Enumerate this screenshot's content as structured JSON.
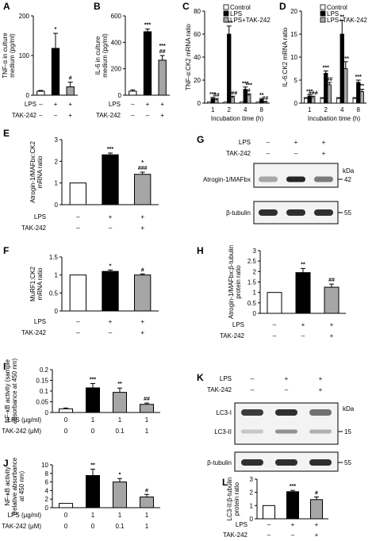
{
  "colors": {
    "control": "#ffffff",
    "lps": "#000000",
    "lps_tak": "#a6a6a6",
    "blot_bg": "#f3f3f3",
    "band": "#1a1a1a"
  },
  "legend": [
    "Control",
    "LPS",
    "LPS+TAK-242"
  ],
  "chart_data": [
    {
      "id": "A",
      "type": "bar",
      "ylabel": "TNF-α in culture medium (pg/ml)",
      "ylim": [
        0,
        200
      ],
      "yticks": [
        "0",
        "100",
        "200"
      ],
      "values": [
        10,
        118,
        21
      ],
      "errors": [
        2,
        38,
        12
      ],
      "sig": [
        "",
        "*",
        "#"
      ],
      "conditions": [
        {
          "label": "LPS",
          "values": [
            "–",
            "+",
            "+"
          ]
        },
        {
          "label": "TAK-242",
          "values": [
            "–",
            "–",
            "+"
          ]
        }
      ]
    },
    {
      "id": "B",
      "type": "bar",
      "ylabel": "IL-6 in culture medium (pg/ml)",
      "ylim": [
        0,
        600
      ],
      "yticks": [
        "0",
        "200",
        "400",
        "600"
      ],
      "values": [
        30,
        480,
        265
      ],
      "errors": [
        10,
        20,
        35
      ],
      "sig": [
        "",
        "***",
        "***\n##"
      ],
      "conditions": [
        {
          "label": "LPS",
          "values": [
            "–",
            "+",
            "+"
          ]
        },
        {
          "label": "TAK-242",
          "values": [
            "–",
            "–",
            "+"
          ]
        }
      ]
    },
    {
      "id": "C",
      "type": "bar",
      "ylabel": "TNF-α:CK2 mRNA ratio",
      "xlabel": "Incubation time (h)",
      "ylim": [
        0,
        80
      ],
      "yticks": [
        "0",
        "20",
        "40",
        "60",
        "80"
      ],
      "categories": [
        "1",
        "2",
        "4",
        "8"
      ],
      "series": [
        {
          "name": "Control",
          "values": [
            1,
            1,
            1,
            1
          ],
          "errors": [
            0.3,
            0.3,
            0.3,
            0.3
          ]
        },
        {
          "name": "LPS",
          "values": [
            4,
            60,
            12,
            3
          ],
          "errors": [
            1,
            7,
            2,
            1
          ]
        },
        {
          "name": "LPS+TAK-242",
          "values": [
            3,
            5,
            7,
            1
          ],
          "errors": [
            1,
            1,
            1,
            0.5
          ]
        }
      ],
      "sig": [
        [
          "",
          "***",
          "##"
        ],
        [
          "",
          "***",
          "###"
        ],
        [
          "",
          "***",
          "***\n#"
        ],
        [
          "",
          "**",
          "##"
        ]
      ]
    },
    {
      "id": "D",
      "type": "bar",
      "ylabel": "IL-6:CK2 mRNA ratio",
      "xlabel": "Incubation time (h)",
      "ylim": [
        0,
        20
      ],
      "yticks": [
        "0",
        "5",
        "10",
        "15",
        "20"
      ],
      "categories": [
        "1",
        "2",
        "4",
        "8"
      ],
      "series": [
        {
          "name": "Control",
          "values": [
            1,
            1,
            1,
            1
          ],
          "errors": [
            0.2,
            0.2,
            0.2,
            0.2
          ]
        },
        {
          "name": "LPS",
          "values": [
            1.5,
            6.5,
            15,
            4.5
          ],
          "errors": [
            0.3,
            0.5,
            3,
            0.5
          ]
        },
        {
          "name": "LPS+TAK-242",
          "values": [
            1.2,
            4,
            7.5,
            2.5
          ],
          "errors": [
            0.3,
            0.5,
            1.5,
            0.5
          ]
        }
      ],
      "sig": [
        [
          "",
          "***",
          "###"
        ],
        [
          "",
          "***",
          "##"
        ],
        [
          "",
          "**",
          "***"
        ],
        [
          "",
          "***",
          "**"
        ]
      ]
    },
    {
      "id": "E",
      "type": "bar",
      "ylabel": "Atrogin-1/MAFbx:CK2 mRNA ratio",
      "ylim": [
        0,
        3
      ],
      "yticks": [
        "0",
        "1",
        "2",
        "3"
      ],
      "values": [
        1,
        2.3,
        1.4
      ],
      "errors": [
        0,
        0.08,
        0.1
      ],
      "sig": [
        "",
        "***",
        "*\n###"
      ],
      "conditions": [
        {
          "label": "LPS",
          "values": [
            "–",
            "+",
            "+"
          ]
        },
        {
          "label": "TAK-242",
          "values": [
            "–",
            "–",
            "+"
          ]
        }
      ]
    },
    {
      "id": "F",
      "type": "bar",
      "ylabel": "MuRF1:CK2 mRNA ratio",
      "ylim": [
        0,
        1.5
      ],
      "yticks": [
        "0",
        "0.5",
        "1",
        "1.5"
      ],
      "values": [
        1,
        1.1,
        1.0
      ],
      "errors": [
        0,
        0.04,
        0.03
      ],
      "sig": [
        "",
        "*",
        "#"
      ],
      "conditions": [
        {
          "label": "LPS",
          "values": [
            "–",
            "+",
            "+"
          ]
        },
        {
          "label": "TAK-242",
          "values": [
            "–",
            "–",
            "+"
          ]
        }
      ]
    },
    {
      "id": "H",
      "type": "bar",
      "ylabel": "Atrogin-1/MAFbx:β-tubulin protein ratio",
      "ylim": [
        0,
        3
      ],
      "yticks": [
        "0",
        "0.5",
        "1",
        "1.5",
        "2",
        "2.5",
        "3"
      ],
      "values": [
        1,
        1.95,
        1.25
      ],
      "errors": [
        0,
        0.2,
        0.15
      ],
      "sig": [
        "",
        "**",
        "##"
      ],
      "conditions": [
        {
          "label": "LPS",
          "values": [
            "–",
            "+",
            "+"
          ]
        },
        {
          "label": "TAK-242",
          "values": [
            "–",
            "–",
            "+"
          ]
        }
      ]
    },
    {
      "id": "I",
      "type": "bar",
      "ylabel": "NF-κB activity (sample absorbance at 450 nm)",
      "ylim": [
        0,
        0.2
      ],
      "yticks": [
        "0",
        "0.05",
        "0.1",
        "0.15",
        "0.2"
      ],
      "values": [
        0.017,
        0.115,
        0.094,
        0.038
      ],
      "errors": [
        0.004,
        0.02,
        0.02,
        0.006
      ],
      "sig": [
        "",
        "***",
        "**",
        "##"
      ],
      "conditions": [
        {
          "label": "LPS (μg/ml)",
          "values": [
            "0",
            "1",
            "1",
            "1"
          ]
        },
        {
          "label": "TAK-242 (μM)",
          "values": [
            "0",
            "0",
            "0.1",
            "1"
          ]
        }
      ]
    },
    {
      "id": "J",
      "type": "bar",
      "ylabel": "NF-κB activity (relative absorbance at 450 nm)",
      "ylim": [
        0,
        10
      ],
      "yticks": [
        "0",
        "2",
        "4",
        "6",
        "8",
        "10"
      ],
      "values": [
        1,
        7.5,
        6.0,
        2.5
      ],
      "errors": [
        0,
        1.5,
        0.8,
        0.6
      ],
      "sig": [
        "",
        "**",
        "*",
        "#"
      ],
      "conditions": [
        {
          "label": "LPS (μg/ml)",
          "values": [
            "0",
            "1",
            "1",
            "1"
          ]
        },
        {
          "label": "TAK-242 (μM)",
          "values": [
            "0",
            "0",
            "0.1",
            "1"
          ]
        }
      ]
    },
    {
      "id": "L",
      "type": "bar",
      "ylabel": "LC3-II:β-tubulin protein ratio",
      "ylim": [
        0,
        3
      ],
      "yticks": [
        "0",
        "1",
        "2",
        "3"
      ],
      "values": [
        1,
        2.05,
        1.45
      ],
      "errors": [
        0,
        0.1,
        0.2
      ],
      "sig": [
        "",
        "***",
        "#"
      ],
      "conditions": [
        {
          "label": "LPS",
          "values": [
            "–",
            "+",
            "+"
          ]
        },
        {
          "label": "TAK-242",
          "values": [
            "–",
            "–",
            "+"
          ]
        }
      ]
    }
  ],
  "blots": {
    "G": {
      "conditions": [
        {
          "label": "LPS",
          "values": [
            "–",
            "+",
            "+"
          ]
        },
        {
          "label": "TAK-242",
          "values": [
            "–",
            "–",
            "+"
          ]
        }
      ],
      "unit": "kDa",
      "lanes": [
        {
          "label": "Atrogin-1/MAFbx",
          "marker": "42",
          "intensity": [
            0.35,
            0.95,
            0.55
          ]
        },
        {
          "label": "β-tubulin",
          "marker": "55",
          "intensity": [
            0.9,
            0.9,
            0.9
          ]
        }
      ]
    },
    "K": {
      "conditions": [
        {
          "label": "LPS",
          "values": [
            "–",
            "+",
            "+"
          ]
        },
        {
          "label": "TAK-242",
          "values": [
            "–",
            "–",
            "+"
          ]
        }
      ],
      "unit": "kDa",
      "lanes": [
        {
          "label": "LC3-I",
          "intensity": [
            0.85,
            0.9,
            0.6
          ]
        },
        {
          "label": "LC3-II",
          "marker": "15",
          "intensity": [
            0.2,
            0.45,
            0.3
          ]
        },
        {
          "label": "β-tubulin",
          "marker": "55",
          "intensity": [
            0.9,
            0.9,
            0.9
          ]
        }
      ]
    }
  }
}
